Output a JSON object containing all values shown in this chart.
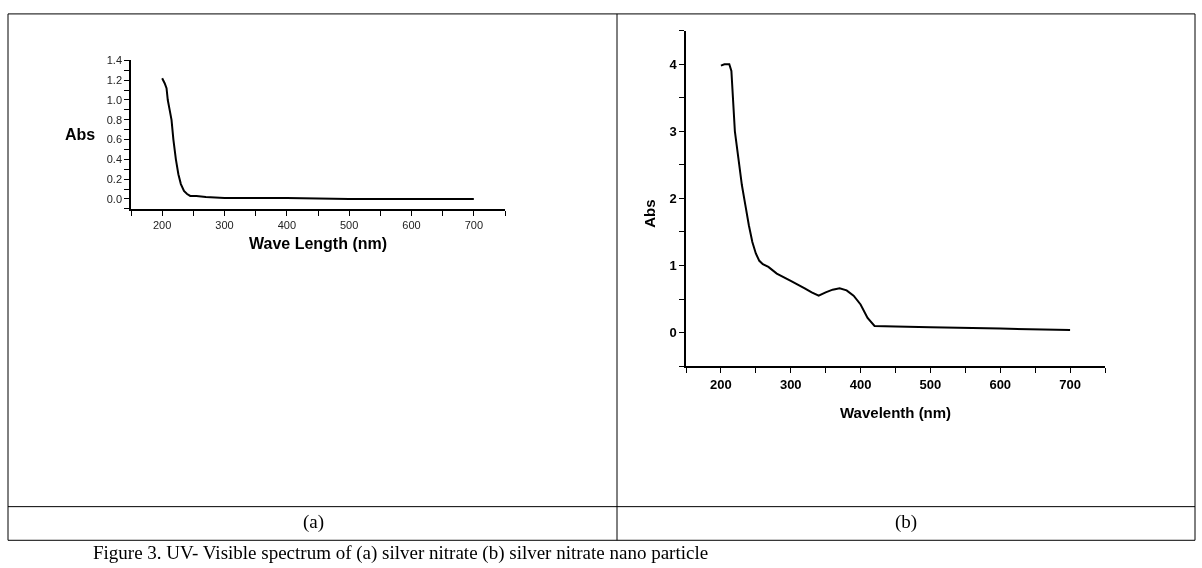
{
  "chart_data": [
    {
      "type": "line",
      "xlabel": "Wave Length (nm)",
      "ylabel": "Abs",
      "annotations": [
        "(a)",
        "Figure 3. UV- Visible spectrum of (a) silver nitrate (b) silver nitrate nano particle"
      ],
      "x": [
        200,
        204,
        207,
        209,
        212,
        215,
        218,
        222,
        226,
        230,
        235,
        240,
        245,
        255,
        270,
        300,
        350,
        400,
        500,
        700
      ],
      "series": [
        {
          "color": "#000000",
          "values": [
            1.22,
            1.17,
            1.12,
            1.0,
            0.9,
            0.8,
            0.6,
            0.4,
            0.25,
            0.15,
            0.08,
            0.05,
            0.03,
            0.03,
            0.02,
            0.01,
            0.01,
            0.01,
            0.0,
            0.0
          ]
        }
      ],
      "xlim": [
        150,
        750
      ],
      "ylim": [
        -0.1,
        1.4
      ],
      "xticks": [
        {
          "value": 150,
          "label": null
        },
        200,
        {
          "value": 250,
          "label": null
        },
        300,
        {
          "value": 350,
          "label": null
        },
        400,
        {
          "value": 450,
          "label": null
        },
        500,
        {
          "value": 550,
          "label": null
        },
        600,
        {
          "value": 650,
          "label": null
        },
        700,
        {
          "value": 750,
          "label": null
        }
      ],
      "yticks": [
        {
          "value": -0.1,
          "label": null
        },
        {
          "value": 0,
          "label": "0.0"
        },
        {
          "value": 0.1,
          "label": null
        },
        {
          "value": 0.2,
          "label": "0.2"
        },
        {
          "value": 0.3,
          "label": null
        },
        {
          "value": 0.4,
          "label": "0.4"
        },
        {
          "value": 0.5,
          "label": null
        },
        {
          "value": 0.6,
          "label": "0.6"
        },
        {
          "value": 0.7,
          "label": null
        },
        {
          "value": 0.8,
          "label": "0.8"
        },
        {
          "value": 0.9,
          "label": null
        },
        {
          "value": 1.0,
          "label": "1.0"
        },
        {
          "value": 1.1,
          "label": null
        },
        {
          "value": 1.2,
          "label": "1.2"
        },
        {
          "value": 1.3,
          "label": null
        },
        {
          "value": 1.4,
          "label": "1.4"
        }
      ],
      "legend": false,
      "marker": "none",
      "line_style": "solid"
    },
    {
      "type": "line",
      "xlabel": "Wavelenth (nm)",
      "ylabel": "Abs",
      "annotations": [
        "(b)"
      ],
      "x": [
        200,
        205,
        212,
        215,
        220,
        225,
        230,
        235,
        240,
        245,
        250,
        255,
        260,
        268,
        280,
        300,
        320,
        330,
        340,
        350,
        360,
        370,
        380,
        390,
        400,
        410,
        420,
        450,
        500,
        600,
        700
      ],
      "series": [
        {
          "color": "#000000",
          "values": [
            3.98,
            4.0,
            4.0,
            3.9,
            3.0,
            2.6,
            2.2,
            1.9,
            1.6,
            1.35,
            1.18,
            1.07,
            1.02,
            0.98,
            0.88,
            0.77,
            0.66,
            0.6,
            0.55,
            0.6,
            0.64,
            0.66,
            0.63,
            0.55,
            0.42,
            0.22,
            0.1,
            0.09,
            0.08,
            0.06,
            0.04
          ]
        }
      ],
      "xlim": [
        150,
        750
      ],
      "ylim": [
        -0.5,
        4.5
      ],
      "xticks": [
        {
          "value": 150,
          "label": null
        },
        200,
        {
          "value": 250,
          "label": null
        },
        300,
        {
          "value": 350,
          "label": null
        },
        400,
        {
          "value": 450,
          "label": null
        },
        500,
        {
          "value": 550,
          "label": null
        },
        600,
        {
          "value": 650,
          "label": null
        },
        700,
        {
          "value": 750,
          "label": null
        }
      ],
      "yticks": [
        {
          "value": -0.5,
          "label": null
        },
        0,
        {
          "value": 0.5,
          "label": null
        },
        1,
        {
          "value": 1.5,
          "label": null
        },
        2,
        {
          "value": 2.5,
          "label": null
        },
        3,
        {
          "value": 3.5,
          "label": null
        },
        4,
        {
          "value": 4.5,
          "label": null
        }
      ],
      "legend": false,
      "marker": "none",
      "line_style": "solid"
    }
  ]
}
